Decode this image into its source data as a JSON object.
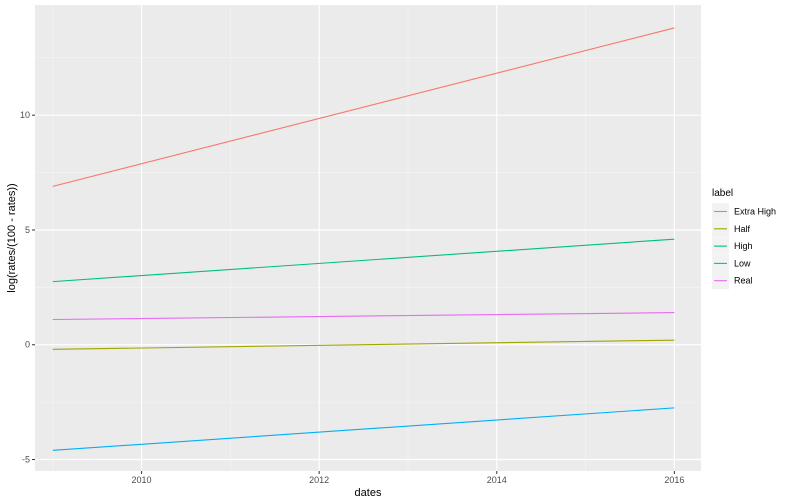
{
  "chart_data": {
    "type": "line",
    "title": "",
    "xlabel": "dates",
    "ylabel": "log(rates/(100 - rates))",
    "xlim": [
      2008.8,
      2016.3
    ],
    "ylim": [
      -5.5,
      14.8
    ],
    "x_ticks": [
      2010,
      2012,
      2014,
      2016
    ],
    "x_tick_labels": [
      "2010",
      "2012",
      "2014",
      "2016"
    ],
    "y_ticks": [
      -5,
      0,
      5,
      10
    ],
    "y_tick_labels": [
      "-5",
      "0",
      "5",
      "10"
    ],
    "grid": true,
    "legend_position": "right",
    "legend_title": "label",
    "series": [
      {
        "name": "Extra High",
        "color": "#F8766D",
        "x": [
          2009,
          2016
        ],
        "y": [
          6.9,
          13.8
        ]
      },
      {
        "name": "Half",
        "color": "#A3A500",
        "x": [
          2009,
          2016
        ],
        "y": [
          -0.2,
          0.2
        ]
      },
      {
        "name": "High",
        "color": "#00BF7D",
        "x": [
          2009,
          2016
        ],
        "y": [
          2.75,
          4.6
        ]
      },
      {
        "name": "Low",
        "color": "#00B0F6",
        "x": [
          2009,
          2016
        ],
        "y": [
          -4.6,
          -2.75
        ]
      },
      {
        "name": "Real",
        "color": "#E76BF3",
        "x": [
          2009,
          2016
        ],
        "y": [
          1.1,
          1.4
        ]
      }
    ]
  }
}
